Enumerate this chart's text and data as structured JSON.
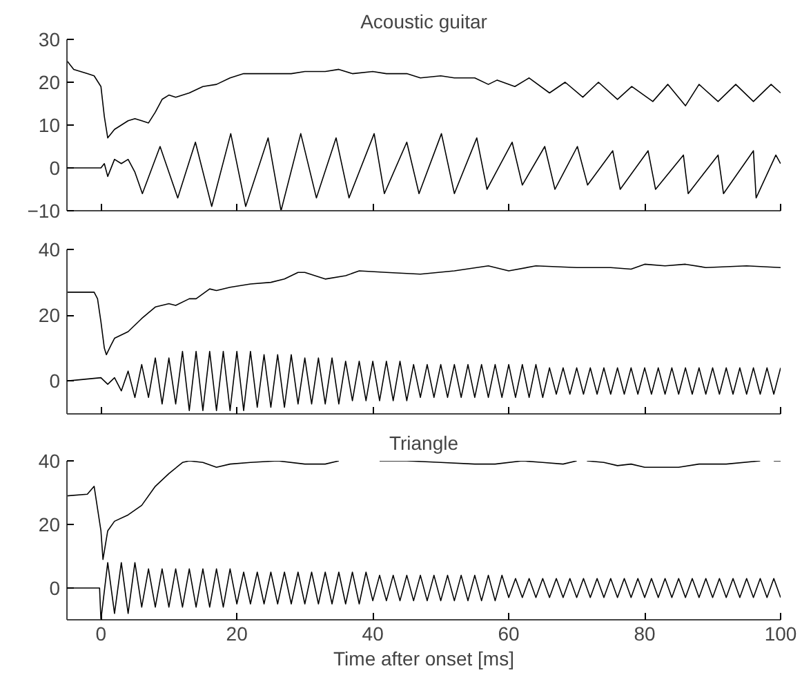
{
  "chart_data": [
    {
      "type": "line",
      "title": "Acoustic guitar",
      "xlim": [
        -5,
        100
      ],
      "ylim": [
        -10,
        30
      ],
      "xticks": [
        0,
        20,
        40,
        60,
        80,
        100
      ],
      "yticks": [
        -10,
        0,
        10,
        20,
        30
      ],
      "tick_labels": "y",
      "series": [
        {
          "color": "#000000",
          "x": [
            -5,
            -4,
            -2,
            -1,
            0,
            0.5,
            1,
            2,
            4,
            5,
            6,
            7,
            8,
            9,
            10,
            11,
            13,
            15,
            17,
            19,
            21,
            25,
            28,
            30,
            33,
            35,
            37,
            40,
            42,
            45,
            47,
            50,
            52,
            55,
            57,
            58.3,
            60.9,
            63,
            66,
            68.3,
            70.9,
            73.2,
            76,
            78.1,
            81.2,
            83.4,
            86,
            88,
            90.8,
            93.4,
            96,
            98.6,
            100
          ],
          "values": [
            25,
            23,
            22,
            21.5,
            19,
            12,
            7,
            9,
            11,
            11.5,
            11,
            10.5,
            13,
            16,
            17,
            16.5,
            17.5,
            19,
            19.5,
            21,
            22,
            22,
            22,
            22.5,
            22.5,
            23,
            22,
            22.5,
            22,
            22,
            21,
            21.5,
            21,
            21,
            19.5,
            20.5,
            19,
            21,
            17.5,
            20,
            16.5,
            20,
            16,
            19,
            15.5,
            19.5,
            14.5,
            19.5,
            15.5,
            19.5,
            15.5,
            19.5,
            17.5
          ]
        },
        {
          "color": "#000000",
          "x": [
            -5,
            0,
            0.5,
            1,
            2,
            3,
            4,
            5,
            6.1,
            8.7,
            11.3,
            13.9,
            16.3,
            19.1,
            21.3,
            24.6,
            26.5,
            29.4,
            31.7,
            34.6,
            36.5,
            40.2,
            41.7,
            45,
            46.8,
            50.1,
            52,
            55.3,
            56.8,
            60.5,
            62,
            65.3,
            66.8,
            70.1,
            71.6,
            75.3,
            76.4,
            80.5,
            81.6,
            85.7,
            86.4,
            90.8,
            91.6,
            96,
            96.4,
            99.3,
            100
          ],
          "values": [
            0,
            0,
            1,
            -2,
            2,
            1,
            2,
            -1,
            -6,
            5,
            -7,
            6,
            -9,
            8,
            -9,
            7,
            -10,
            8,
            -7,
            7,
            -7,
            8,
            -6,
            6,
            -6,
            8,
            -6,
            7,
            -5,
            6,
            -4,
            5,
            -5,
            5,
            -4,
            4,
            -5,
            4,
            -5,
            3,
            -6,
            3,
            -6,
            4,
            -7,
            3,
            1
          ]
        }
      ]
    },
    {
      "type": "line",
      "xlim": [
        -5,
        100
      ],
      "ylim": [
        -10,
        40
      ],
      "xticks": [
        0,
        20,
        40,
        60,
        80,
        100
      ],
      "yticks": [
        0,
        20,
        40
      ],
      "tick_labels": "y",
      "series": [
        {
          "color": "#000000",
          "x": [
            -5,
            -1,
            -0.5,
            0,
            0.5,
            0.8,
            1.5,
            2,
            4,
            6,
            8,
            10,
            11,
            13,
            14,
            16,
            17,
            19,
            22,
            25,
            27,
            29,
            30,
            33,
            36,
            38,
            42,
            47,
            52,
            57,
            60,
            64,
            70,
            75,
            78,
            80,
            83,
            86,
            89,
            95,
            100
          ],
          "values": [
            27,
            27,
            25,
            18,
            10,
            8,
            11,
            13,
            15,
            19,
            22.5,
            23.5,
            23,
            25,
            25,
            28,
            27.5,
            28.5,
            29.5,
            30,
            31,
            33,
            33,
            31,
            32,
            33.5,
            33,
            32.5,
            33.5,
            35,
            33.5,
            35,
            34.5,
            34.5,
            34,
            35.5,
            35,
            35.5,
            34.5,
            35,
            34.5
          ]
        },
        {
          "color": "#000000",
          "x": [
            -5,
            0,
            1,
            2,
            3,
            4,
            5,
            6,
            7,
            8,
            9,
            10,
            11,
            12,
            13,
            14,
            15,
            16,
            17,
            18,
            19,
            20,
            21,
            22,
            23,
            24,
            25,
            26,
            27,
            28,
            29,
            30,
            31,
            32,
            33,
            34,
            35,
            36,
            37,
            38,
            39,
            40,
            41,
            42,
            43,
            44,
            45,
            46,
            47,
            48,
            49,
            50,
            51,
            52,
            53,
            54,
            55,
            56,
            57,
            58,
            59,
            60,
            61,
            62,
            63,
            64,
            65,
            66,
            67,
            68,
            69,
            70,
            71,
            72,
            73,
            74,
            75,
            76,
            77,
            78,
            79,
            80,
            81,
            82,
            83,
            84,
            85,
            86,
            87,
            88,
            89,
            90,
            91,
            92,
            93,
            94,
            95,
            96,
            97,
            98,
            99,
            100
          ],
          "values": [
            0,
            1,
            -1,
            1,
            -3,
            3,
            -5,
            5,
            -5,
            7,
            -7,
            7,
            -7,
            9,
            -9,
            9,
            -9,
            9,
            -9,
            9,
            -9,
            9,
            -9,
            9,
            -8,
            8,
            -8,
            8,
            -8,
            8,
            -7,
            7,
            -7,
            7,
            -7,
            7,
            -7,
            6,
            -6,
            6,
            -6,
            6,
            -6,
            6,
            -6,
            6,
            -6,
            5,
            -5,
            5,
            -5,
            5,
            -5,
            5,
            -5,
            5,
            -5,
            5,
            -5,
            5,
            -5,
            5,
            -5,
            5,
            -5,
            5,
            -5,
            4,
            -4,
            4,
            -4,
            4,
            -4,
            4,
            -4,
            4,
            -4,
            4,
            -4,
            4,
            -4,
            4,
            -4,
            4,
            -4,
            4,
            -4,
            4,
            -4,
            4,
            -4,
            4,
            -4,
            4,
            -4,
            4,
            -4,
            4,
            -4,
            4,
            -4,
            4
          ]
        }
      ]
    },
    {
      "type": "line",
      "title": "Triangle",
      "xlabel": "Time after onset [ms]",
      "xlim": [
        -5,
        100
      ],
      "ylim": [
        -10,
        40
      ],
      "xticks": [
        0,
        20,
        40,
        60,
        80,
        100
      ],
      "yticks": [
        0,
        20,
        40
      ],
      "series": [
        {
          "color": "#000000",
          "x": [
            -5,
            -2,
            -1,
            0,
            0.3,
            1,
            2,
            4,
            6,
            8,
            10,
            12,
            13,
            15,
            17,
            19,
            22,
            26,
            30,
            33,
            35,
            37,
            41,
            45,
            50,
            55,
            58,
            62,
            65,
            68,
            70,
            70.5,
            71.5,
            74,
            76,
            78,
            80,
            85,
            88,
            92,
            97,
            98,
            99,
            100
          ],
          "values": [
            29,
            29.5,
            32,
            18,
            9,
            18,
            21,
            23,
            26,
            32,
            36,
            39.5,
            40,
            39.5,
            38,
            39,
            39.5,
            40,
            39,
            39,
            40,
            null,
            40,
            40,
            39.5,
            39,
            39,
            40,
            39.5,
            39,
            40,
            null,
            40,
            39.5,
            38.5,
            39,
            38,
            38,
            39,
            39,
            40,
            null,
            40,
            40
          ]
        },
        {
          "color": "#000000",
          "x": [
            -5,
            -0.2,
            0,
            1,
            2,
            3,
            4,
            5,
            6,
            7,
            8,
            9,
            10,
            11,
            12,
            13,
            14,
            15,
            16,
            17,
            18,
            19,
            20,
            21,
            22,
            23,
            24,
            25,
            26,
            27,
            28,
            29,
            30,
            31,
            32,
            33,
            34,
            35,
            36,
            37,
            38,
            39,
            40,
            41,
            42,
            43,
            44,
            45,
            46,
            47,
            48,
            49,
            50,
            51,
            52,
            53,
            54,
            55,
            56,
            57,
            58,
            59,
            60,
            61,
            62,
            63,
            64,
            65,
            66,
            67,
            68,
            69,
            70,
            71,
            72,
            73,
            74,
            75,
            76,
            77,
            78,
            79,
            80,
            81,
            82,
            83,
            84,
            85,
            86,
            87,
            88,
            89,
            90,
            91,
            92,
            93,
            94,
            95,
            96,
            97,
            98,
            99,
            100
          ],
          "values": [
            0,
            0,
            -10,
            8,
            -8,
            8,
            -8,
            8,
            -6,
            6,
            -6,
            6,
            -6,
            6,
            -6,
            6,
            -6,
            6,
            -6,
            6,
            -6,
            6,
            -5,
            5,
            -5,
            5,
            -5,
            5,
            -5,
            5,
            -5,
            5,
            -5,
            5,
            -5,
            5,
            -5,
            5,
            -5,
            5,
            -5,
            5,
            -4,
            4,
            -4,
            4,
            -4,
            4,
            -4,
            4,
            -4,
            4,
            -4,
            4,
            -4,
            4,
            -4,
            4,
            -4,
            4,
            -4,
            4,
            -3,
            3,
            -3,
            3,
            -3,
            3,
            -3,
            3,
            -3,
            3,
            -3,
            3,
            -3,
            3,
            -3,
            3,
            -3,
            3,
            -3,
            3,
            -3,
            3,
            -3,
            3,
            -3,
            3,
            -3,
            3,
            -3,
            3,
            -3,
            3,
            -3,
            3,
            -3,
            3,
            -3,
            3,
            -3,
            3,
            -3
          ]
        }
      ]
    }
  ]
}
